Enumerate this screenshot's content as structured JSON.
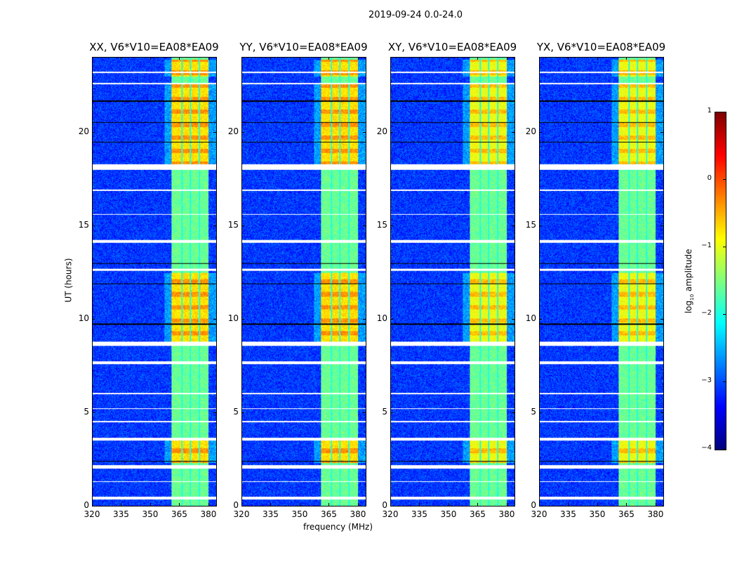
{
  "suptitle": "2019-09-24 0.0-24.0",
  "chart_data": {
    "type": "heatmap",
    "xlabel": "frequency (MHz)",
    "ylabel": "UT (hours)",
    "xlim": [
      320,
      384
    ],
    "ylim": [
      0,
      24
    ],
    "xticks": [
      320,
      335,
      350,
      365,
      380
    ],
    "yticks": [
      0,
      5,
      10,
      15,
      20
    ],
    "panels": [
      {
        "title": "XX, V6*V10=EA08*EA09"
      },
      {
        "title": "YY, V6*V10=EA08*EA09"
      },
      {
        "title": "XY, V6*V10=EA08*EA09"
      },
      {
        "title": "YX, V6*V10=EA08*EA09"
      }
    ],
    "bright_band_mhz": [
      360.5,
      380
    ],
    "band_gaps_mhz": [
      366,
      370.5,
      375
    ],
    "background_log10": -3.1,
    "band_log10": -1.6,
    "strong_rfi_hours": [
      [
        2.3,
        3.5
      ],
      [
        8.8,
        12.5
      ],
      [
        18.3,
        22.6
      ],
      [
        23.0,
        23.9
      ]
    ],
    "flagged_hours": [
      [
        0.35,
        0.5
      ],
      [
        2.0,
        2.2
      ],
      [
        3.5,
        3.65
      ],
      [
        7.6,
        7.75
      ],
      [
        8.6,
        8.8
      ],
      [
        14.1,
        14.25
      ],
      [
        18.0,
        18.3
      ],
      [
        12.6,
        12.7
      ],
      [
        15.6,
        15.65
      ],
      [
        16.9,
        16.95
      ],
      [
        22.6,
        22.65
      ],
      [
        23.2,
        23.25
      ],
      [
        5.2,
        5.25
      ],
      [
        6.0,
        6.05
      ],
      [
        4.5,
        4.55
      ],
      [
        1.3,
        1.35
      ]
    ],
    "black_line_hours": [
      2.4,
      9.75,
      11.9,
      19.5,
      20.55,
      13.0,
      21.7
    ],
    "colorbar": {
      "label": "log10 amplitude",
      "label_main": "log",
      "label_sub": "10",
      "label_rest": " amplitude",
      "range": [
        -4,
        1
      ],
      "ticks": [
        "1",
        "0",
        "−1",
        "−2",
        "−3",
        "−4"
      ],
      "colormap": "jet"
    }
  }
}
